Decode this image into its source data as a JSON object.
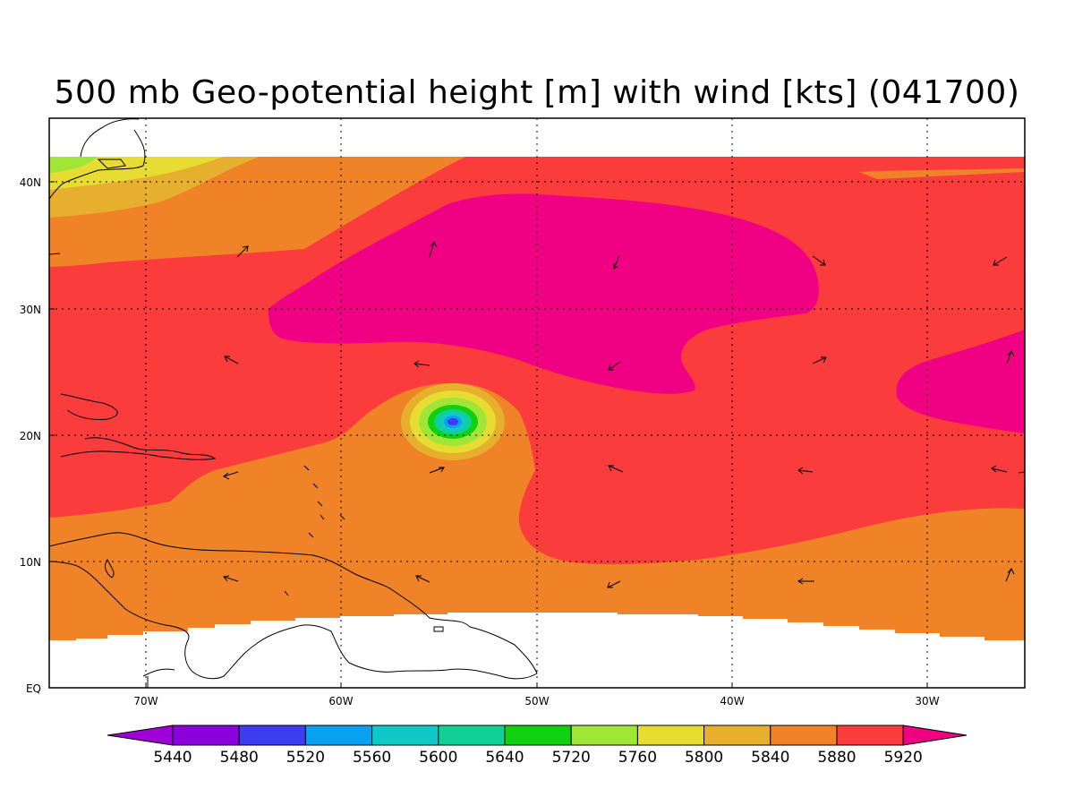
{
  "title": "500 mb Geo-potential height [m] with wind [kts] (041700)",
  "lon_labels": [
    "70W",
    "60W",
    "50W",
    "40W",
    "30W"
  ],
  "lat_labels": [
    "40N",
    "30N",
    "20N",
    "10N",
    "EQ"
  ],
  "colorbar": {
    "labels": [
      "5440",
      "5480",
      "5520",
      "5560",
      "5600",
      "5640",
      "5720",
      "5760",
      "5800",
      "5840",
      "5880",
      "5920"
    ],
    "colors": [
      "#a000d8",
      "#8c00dc",
      "#3c3cf0",
      "#0aa0f0",
      "#10c8c8",
      "#10d096",
      "#10d010",
      "#a0e636",
      "#e6dc32",
      "#e6af2d",
      "#f08228",
      "#fa3c3c",
      "#f00082"
    ]
  },
  "map_colors": {
    "c5840": "#e6af2d",
    "c5880": "#f08228",
    "c5920": "#fa3c3c",
    "c_high": "#f00082",
    "c5800": "#e6dc32",
    "c5760": "#a0e636"
  }
}
